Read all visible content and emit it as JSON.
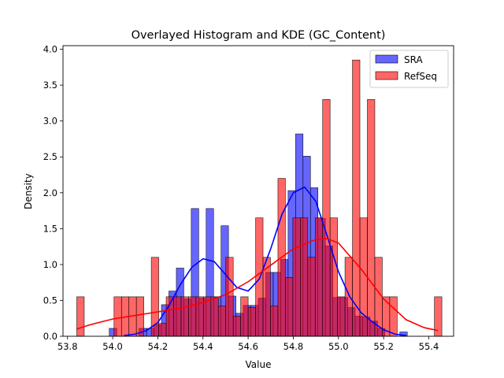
{
  "chart_data": {
    "type": "histogram",
    "title": "Overlayed Histogram and KDE (GC_Content)",
    "xlabel": "Value",
    "ylabel": "Density",
    "xlim": [
      53.78,
      55.51
    ],
    "ylim": [
      0,
      4.05
    ],
    "xticks": [
      53.8,
      54.0,
      54.2,
      54.4,
      54.6,
      54.8,
      55.0,
      55.2,
      55.4
    ],
    "xtick_labels": [
      "53.8",
      "54.0",
      "54.2",
      "54.4",
      "54.6",
      "54.8",
      "55.0",
      "55.2",
      "55.4"
    ],
    "yticks": [
      0.0,
      0.5,
      1.0,
      1.5,
      2.0,
      2.5,
      3.0,
      3.5,
      4.0
    ],
    "ytick_labels": [
      "0.0",
      "0.5",
      "1.0",
      "1.5",
      "2.0",
      "2.5",
      "3.0",
      "3.5",
      "4.0"
    ],
    "grid": false,
    "legend_position": "top-right",
    "series": [
      {
        "name": "SRA",
        "color": "#0000ff",
        "bar_alpha": 0.6,
        "bins": [
          [
            53.985,
            54.018,
            0.11
          ],
          [
            54.018,
            54.051,
            0.0
          ],
          [
            54.051,
            54.084,
            0.0
          ],
          [
            54.084,
            54.117,
            0.0
          ],
          [
            54.117,
            54.15,
            0.11
          ],
          [
            54.15,
            54.183,
            0.11
          ],
          [
            54.183,
            54.216,
            0.16
          ],
          [
            54.216,
            54.249,
            0.44
          ],
          [
            54.249,
            54.282,
            0.63
          ],
          [
            54.282,
            54.315,
            0.95
          ],
          [
            54.315,
            54.348,
            0.52
          ],
          [
            54.348,
            54.381,
            1.78
          ],
          [
            54.381,
            54.414,
            0.53
          ],
          [
            54.414,
            54.447,
            1.78
          ],
          [
            54.447,
            54.48,
            0.55
          ],
          [
            54.48,
            54.513,
            1.54
          ],
          [
            54.513,
            54.546,
            0.56
          ],
          [
            54.546,
            54.579,
            0.32
          ],
          [
            54.579,
            54.612,
            0.43
          ],
          [
            54.612,
            54.645,
            0.43
          ],
          [
            54.645,
            54.678,
            0.53
          ],
          [
            54.678,
            54.711,
            0.89
          ],
          [
            54.711,
            54.744,
            0.89
          ],
          [
            54.744,
            54.777,
            1.07
          ],
          [
            54.777,
            54.81,
            2.03
          ],
          [
            54.81,
            54.843,
            2.82
          ],
          [
            54.843,
            54.876,
            2.51
          ],
          [
            54.876,
            54.909,
            2.07
          ],
          [
            54.909,
            54.942,
            1.64
          ],
          [
            54.942,
            54.975,
            1.26
          ],
          [
            54.975,
            55.008,
            0.54
          ],
          [
            55.008,
            55.041,
            0.54
          ],
          [
            55.041,
            55.074,
            0.4
          ],
          [
            55.074,
            55.107,
            0.28
          ],
          [
            55.107,
            55.14,
            0.27
          ],
          [
            55.14,
            55.173,
            0.21
          ],
          [
            55.173,
            55.206,
            0.11
          ],
          [
            55.206,
            55.239,
            0.0
          ],
          [
            55.239,
            55.272,
            0.0
          ],
          [
            55.272,
            55.305,
            0.06
          ]
        ],
        "kde": [
          [
            54.05,
            0.01
          ],
          [
            54.1,
            0.03
          ],
          [
            54.15,
            0.08
          ],
          [
            54.2,
            0.19
          ],
          [
            54.25,
            0.43
          ],
          [
            54.3,
            0.72
          ],
          [
            54.35,
            0.96
          ],
          [
            54.4,
            1.08
          ],
          [
            54.45,
            1.04
          ],
          [
            54.5,
            0.86
          ],
          [
            54.55,
            0.68
          ],
          [
            54.6,
            0.63
          ],
          [
            54.65,
            0.8
          ],
          [
            54.7,
            1.22
          ],
          [
            54.75,
            1.7
          ],
          [
            54.8,
            2.0
          ],
          [
            54.85,
            2.08
          ],
          [
            54.9,
            1.88
          ],
          [
            54.95,
            1.4
          ],
          [
            55.0,
            0.9
          ],
          [
            55.05,
            0.55
          ],
          [
            55.1,
            0.33
          ],
          [
            55.15,
            0.2
          ],
          [
            55.2,
            0.09
          ],
          [
            55.25,
            0.03
          ],
          [
            55.3,
            0.01
          ]
        ]
      },
      {
        "name": "RefSeq",
        "color": "#ff0000",
        "bar_alpha": 0.6,
        "bins": [
          [
            53.841,
            53.874,
            0.55
          ],
          [
            53.874,
            53.907,
            0.0
          ],
          [
            53.907,
            53.94,
            0.0
          ],
          [
            53.94,
            53.973,
            0.0
          ],
          [
            53.973,
            54.006,
            0.0
          ],
          [
            54.006,
            54.039,
            0.55
          ],
          [
            54.039,
            54.072,
            0.55
          ],
          [
            54.072,
            54.105,
            0.55
          ],
          [
            54.105,
            54.138,
            0.55
          ],
          [
            54.138,
            54.171,
            0.0
          ],
          [
            54.171,
            54.204,
            1.1
          ],
          [
            54.204,
            54.237,
            0.18
          ],
          [
            54.237,
            54.27,
            0.55
          ],
          [
            54.27,
            54.303,
            0.55
          ],
          [
            54.303,
            54.336,
            0.55
          ],
          [
            54.336,
            54.369,
            0.55
          ],
          [
            54.369,
            54.402,
            0.55
          ],
          [
            54.402,
            54.435,
            0.55
          ],
          [
            54.435,
            54.468,
            0.55
          ],
          [
            54.468,
            54.501,
            0.42
          ],
          [
            54.501,
            54.534,
            1.1
          ],
          [
            54.534,
            54.567,
            0.28
          ],
          [
            54.567,
            54.6,
            0.55
          ],
          [
            54.6,
            54.633,
            0.4
          ],
          [
            54.633,
            54.666,
            1.65
          ],
          [
            54.666,
            54.699,
            1.1
          ],
          [
            54.699,
            54.732,
            0.42
          ],
          [
            54.732,
            54.765,
            2.2
          ],
          [
            54.765,
            54.798,
            0.82
          ],
          [
            54.798,
            54.831,
            1.65
          ],
          [
            54.831,
            54.864,
            1.65
          ],
          [
            54.864,
            54.897,
            1.1
          ],
          [
            54.897,
            54.93,
            1.65
          ],
          [
            54.93,
            54.963,
            3.3
          ],
          [
            54.963,
            54.996,
            1.65
          ],
          [
            54.996,
            55.029,
            0.55
          ],
          [
            55.029,
            55.062,
            1.1
          ],
          [
            55.062,
            55.095,
            3.85
          ],
          [
            55.095,
            55.128,
            1.65
          ],
          [
            55.128,
            55.161,
            3.3
          ],
          [
            55.161,
            55.194,
            1.1
          ],
          [
            55.194,
            55.227,
            0.55
          ],
          [
            55.227,
            55.26,
            0.55
          ],
          [
            55.26,
            55.293,
            0.0
          ],
          [
            55.293,
            55.326,
            0.0
          ],
          [
            55.326,
            55.359,
            0.0
          ],
          [
            55.359,
            55.392,
            0.0
          ],
          [
            55.392,
            55.425,
            0.0
          ],
          [
            55.425,
            55.458,
            0.55
          ]
        ],
        "kde": [
          [
            53.84,
            0.1
          ],
          [
            53.9,
            0.16
          ],
          [
            54.0,
            0.24
          ],
          [
            54.1,
            0.29
          ],
          [
            54.2,
            0.34
          ],
          [
            54.3,
            0.39
          ],
          [
            54.4,
            0.47
          ],
          [
            54.5,
            0.58
          ],
          [
            54.6,
            0.76
          ],
          [
            54.7,
            0.99
          ],
          [
            54.8,
            1.22
          ],
          [
            54.9,
            1.35
          ],
          [
            54.95,
            1.36
          ],
          [
            55.0,
            1.3
          ],
          [
            55.1,
            0.94
          ],
          [
            55.2,
            0.52
          ],
          [
            55.3,
            0.23
          ],
          [
            55.38,
            0.12
          ],
          [
            55.44,
            0.08
          ]
        ]
      }
    ]
  }
}
